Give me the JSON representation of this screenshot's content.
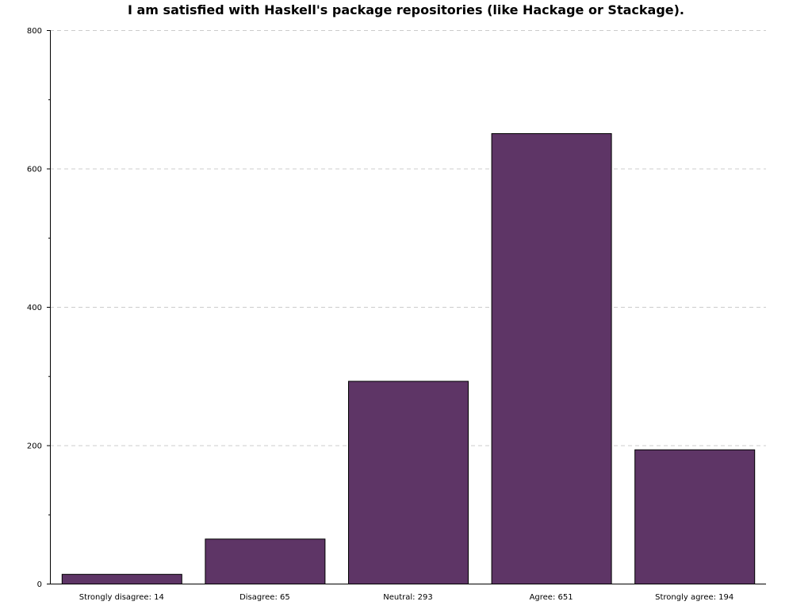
{
  "chart_data": {
    "type": "bar",
    "title": "I am satisfied with Haskell's package repositories (like Hackage or Stackage).",
    "xlabel": "",
    "ylabel": "",
    "categories": [
      "Strongly disagree: 14",
      "Disagree: 65",
      "Neutral: 293",
      "Agree: 651",
      "Strongly agree: 194"
    ],
    "values": [
      14,
      65,
      293,
      651,
      194
    ],
    "ylim": [
      0,
      800
    ],
    "yticks": [
      0,
      200,
      400,
      600,
      800
    ],
    "minor_yticks": [
      100,
      300,
      500,
      700
    ],
    "grid": "horizontal dashed at major y ticks",
    "legend": "none",
    "colors": {
      "bar_fill": "#5e3566",
      "bar_stroke": "#000000",
      "grid": "#cccccc",
      "axis": "#000000"
    }
  }
}
